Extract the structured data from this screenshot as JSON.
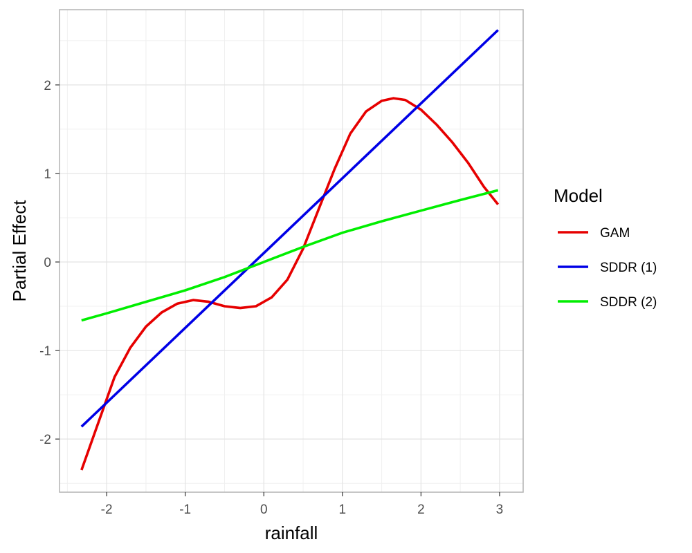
{
  "chart_data": {
    "type": "line",
    "title": "",
    "xlabel": "rainfall",
    "ylabel": "Partial Effect",
    "xlim": [
      -2.6,
      3.3
    ],
    "ylim": [
      -2.6,
      2.85
    ],
    "x_ticks": [
      -2,
      -1,
      0,
      1,
      2,
      3
    ],
    "y_ticks": [
      -2,
      -1,
      0,
      1,
      2
    ],
    "x_tick_labels": [
      "-2",
      "-1",
      "0",
      "1",
      "2",
      "3"
    ],
    "y_tick_labels": [
      "-2",
      "-1",
      "0",
      "1",
      "2"
    ],
    "grid": true,
    "legend": {
      "title": "Model",
      "position": "right"
    },
    "series": [
      {
        "name": "GAM",
        "color": "#e60000",
        "x": [
          -2.32,
          -2.1,
          -1.9,
          -1.7,
          -1.5,
          -1.3,
          -1.1,
          -0.9,
          -0.7,
          -0.5,
          -0.3,
          -0.1,
          0.1,
          0.3,
          0.5,
          0.7,
          0.9,
          1.1,
          1.3,
          1.5,
          1.65,
          1.8,
          2.0,
          2.2,
          2.4,
          2.6,
          2.8,
          2.98
        ],
        "values": [
          -2.35,
          -1.8,
          -1.3,
          -0.97,
          -0.73,
          -0.57,
          -0.47,
          -0.43,
          -0.45,
          -0.5,
          -0.52,
          -0.5,
          -0.4,
          -0.2,
          0.15,
          0.6,
          1.05,
          1.45,
          1.7,
          1.82,
          1.85,
          1.83,
          1.72,
          1.55,
          1.35,
          1.12,
          0.85,
          0.65
        ]
      },
      {
        "name": "SDDR (1)",
        "color": "#0000e6",
        "x": [
          -2.32,
          2.98
        ],
        "values": [
          -1.86,
          2.62
        ]
      },
      {
        "name": "SDDR (2)",
        "color": "#00ee00",
        "x": [
          -2.32,
          -2.0,
          -1.5,
          -1.0,
          -0.5,
          0.0,
          0.5,
          1.0,
          1.5,
          2.0,
          2.5,
          2.98
        ],
        "values": [
          -0.66,
          -0.58,
          -0.45,
          -0.32,
          -0.17,
          0.0,
          0.17,
          0.33,
          0.46,
          0.58,
          0.7,
          0.81
        ]
      }
    ]
  }
}
